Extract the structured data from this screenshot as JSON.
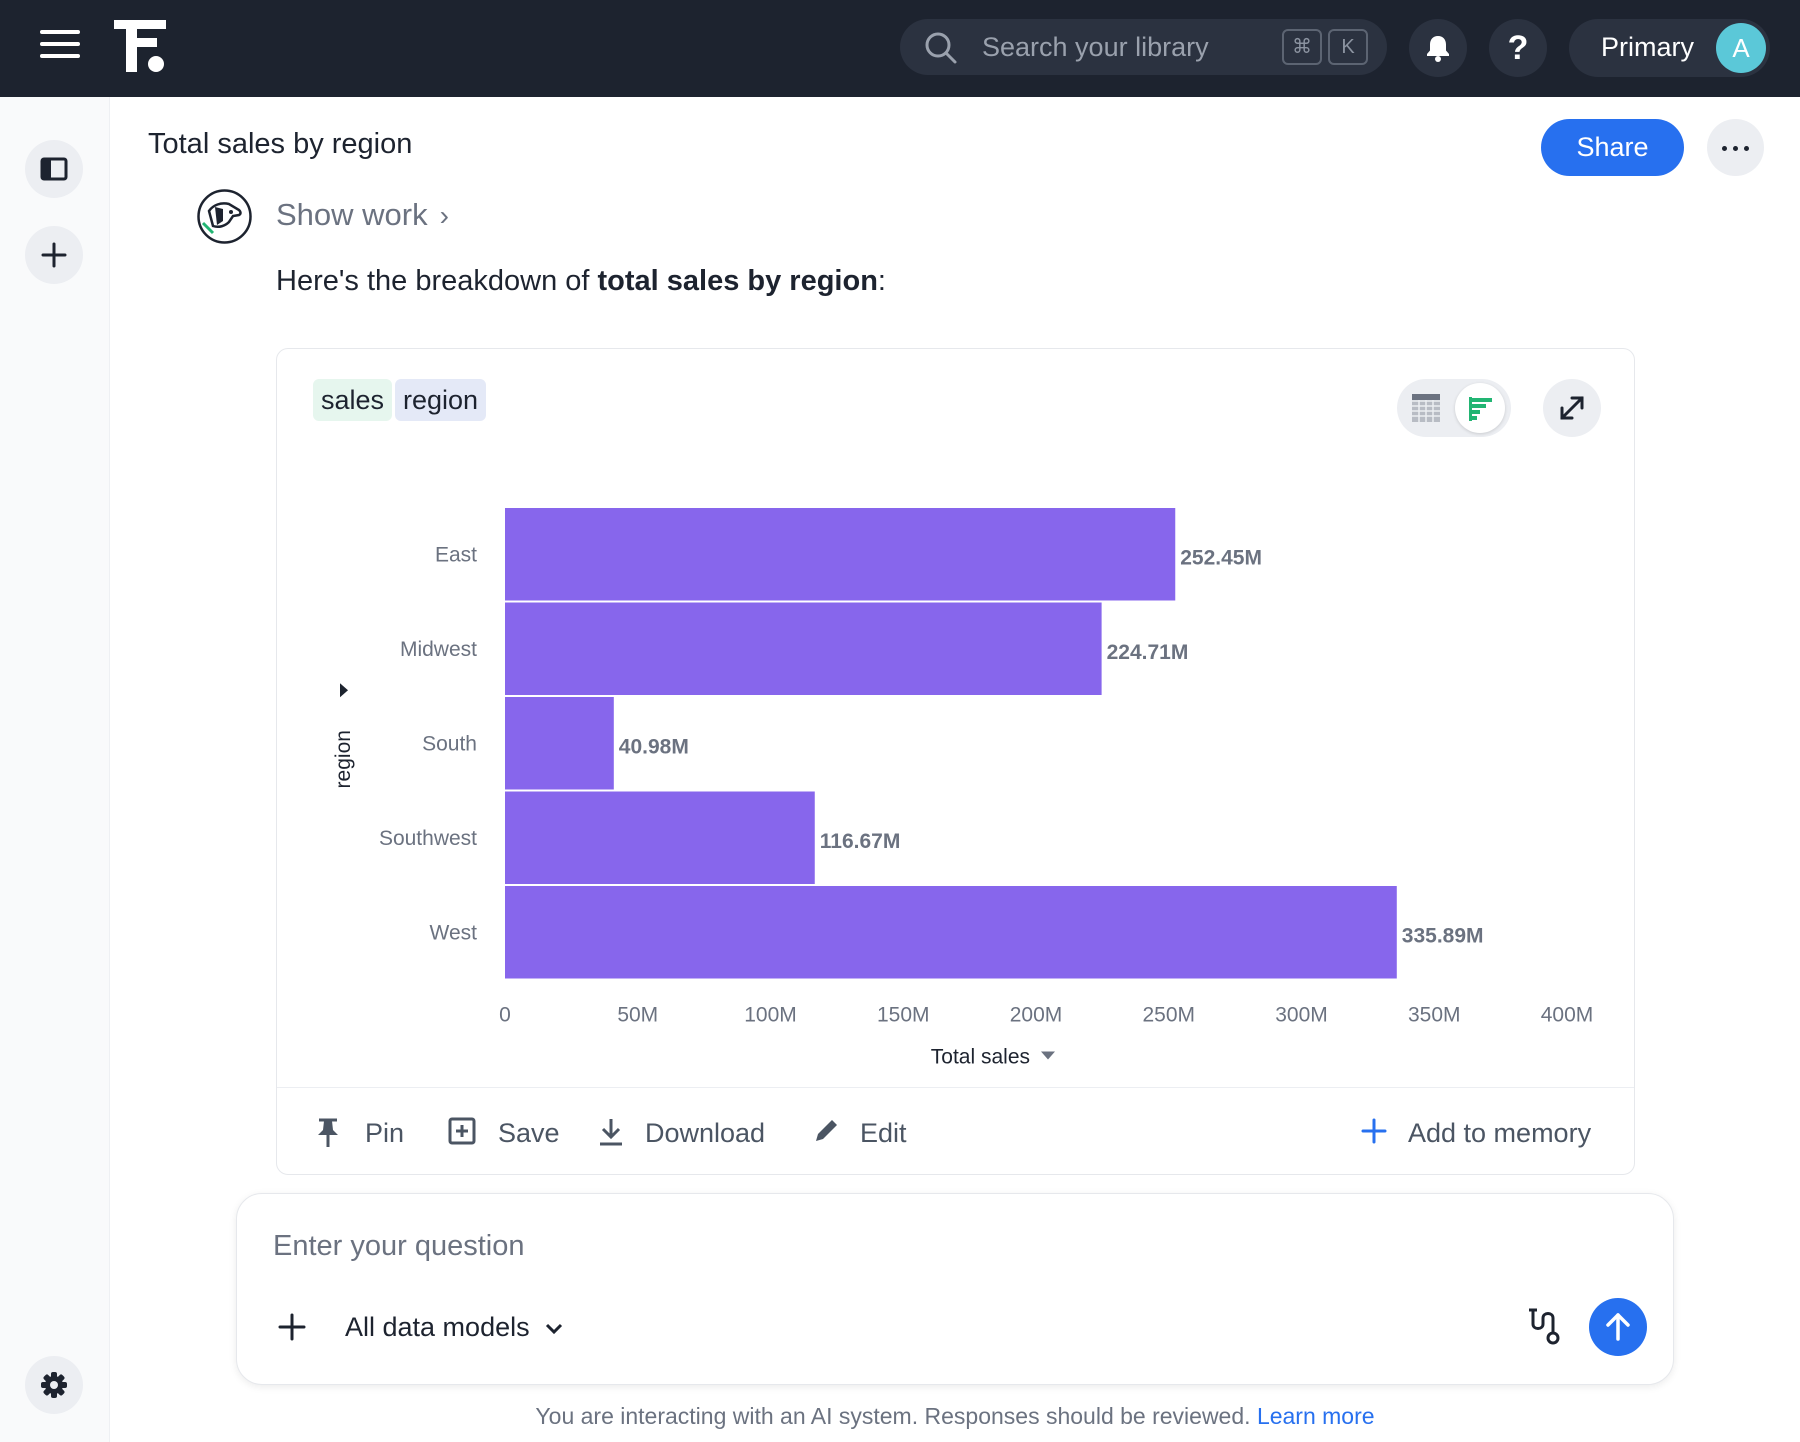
{
  "search": {
    "placeholder": "Search your library",
    "kbd_mod": "⌘",
    "kbd_key": "K"
  },
  "header": {
    "help_label": "?",
    "org_label": "Primary",
    "avatar_initial": "A"
  },
  "page": {
    "title": "Total sales by region",
    "share_label": "Share"
  },
  "message": {
    "show_work_label": "Show work",
    "intro_text": "Here's the breakdown of ",
    "bold_text": "total sales by region",
    "end_text": ":"
  },
  "card": {
    "chips": {
      "sales": "sales",
      "region": "region"
    },
    "actions": {
      "pin": "Pin",
      "save": "Save",
      "download": "Download",
      "edit": "Edit",
      "memory": "Add to memory"
    }
  },
  "chart_data": {
    "type": "bar",
    "orientation": "horizontal",
    "categories": [
      "East",
      "Midwest",
      "South",
      "Southwest",
      "West"
    ],
    "values": [
      252.45,
      224.71,
      40.98,
      116.67,
      335.89
    ],
    "value_labels": [
      "252.45M",
      "224.71M",
      "40.98M",
      "116.67M",
      "335.89M"
    ],
    "unit": "M",
    "xlabel": "Total sales",
    "ylabel": "region",
    "xlim": [
      0,
      400
    ],
    "ticks": [
      0,
      50,
      100,
      150,
      200,
      250,
      300,
      350,
      400
    ],
    "tick_labels": [
      "0",
      "50M",
      "100M",
      "150M",
      "200M",
      "250M",
      "300M",
      "350M",
      "400M"
    ],
    "bar_color": "#8766ec",
    "grid": false
  },
  "ask": {
    "placeholder": "Enter your question",
    "models_label": "All data models"
  },
  "footer": {
    "disclaimer": "You are interacting with an AI system. Responses should be reviewed. ",
    "learn_more": "Learn more"
  },
  "colors": {
    "topbar": "#1d232f",
    "accent": "#2770ef",
    "bar": "#8766ec"
  }
}
